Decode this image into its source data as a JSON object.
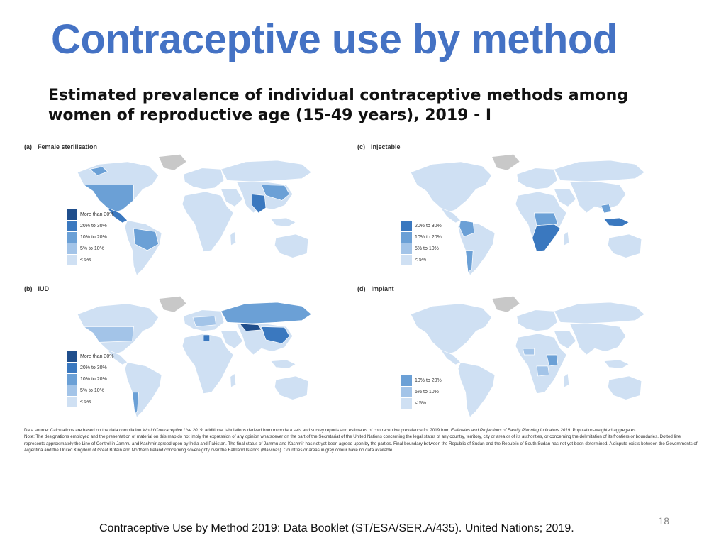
{
  "slide": {
    "title": "Contraceptive use by method",
    "subtitle_line1": "Estimated prevalence of individual contraceptive methods among",
    "subtitle_line2": "women of reproductive age (15-49 years), 2019 - I",
    "page_number": "18",
    "citation": "Contraceptive Use by Method 2019: Data Booklet (ST/ESA/SER.A/435). United Nations; 2019."
  },
  "colors": {
    "more_than_30": "#1f4e8c",
    "20_to_30": "#3a78bf",
    "10_to_20": "#6ba0d6",
    "5_to_10": "#a3c4e8",
    "less_5": "#cfe0f3",
    "no_data": "#c8c8c8"
  },
  "panels": [
    {
      "letter": "(a)",
      "name": "Female sterilisation",
      "legend": [
        "More than 30%",
        "20% to 30%",
        "10% to 20%",
        "5% to 10%",
        "< 5%"
      ]
    },
    {
      "letter": "(c)",
      "name": "Injectable",
      "legend": [
        "20% to 30%",
        "10% to 20%",
        "5% to 10%",
        "< 5%"
      ]
    },
    {
      "letter": "(b)",
      "name": "IUD",
      "legend": [
        "More than 30%",
        "20% to 30%",
        "10% to 20%",
        "5% to 10%",
        "< 5%"
      ]
    },
    {
      "letter": "(d)",
      "name": "Implant",
      "legend": [
        "10% to 20%",
        "5% to 10%",
        "< 5%"
      ]
    }
  ],
  "notes": {
    "source_prefix": "Data source: Calculations are based on the data compilation ",
    "source_italic1": "World Contraceptive Use 2019",
    "source_mid": ", additional tabulations derived from microdata sets and survey reports and estimates of contraceptive prevalence for 2019 from ",
    "source_italic2": "Estimates and Projections of Family Planning Indicators 2019",
    "source_suffix": ". Population-weighted aggregates.",
    "note": "Note: The designations employed and the presentation of material on this map do not imply the expression of any opinion whatsoever on the part of the Secretariat of the United Nations concerning the legal status of any country, territory, city or area or of its authorities, or concerning the delimitation of its frontiers or boundaries. Dotted line represents approximately the Line of Control in Jammu and Kashmir agreed upon by India and Pakistan. The final status of Jammu and Kashmir has not yet been agreed upon by the parties. Final boundary between the Republic of Sudan and the Republic of South Sudan has not yet been determined. A dispute exists between the Governments of Argentina and the United Kingdom of Great Britain and Northern Ireland concerning sovereignty over the Falkland Islands (Malvinas). Countries or areas in grey colour have no data available."
  }
}
